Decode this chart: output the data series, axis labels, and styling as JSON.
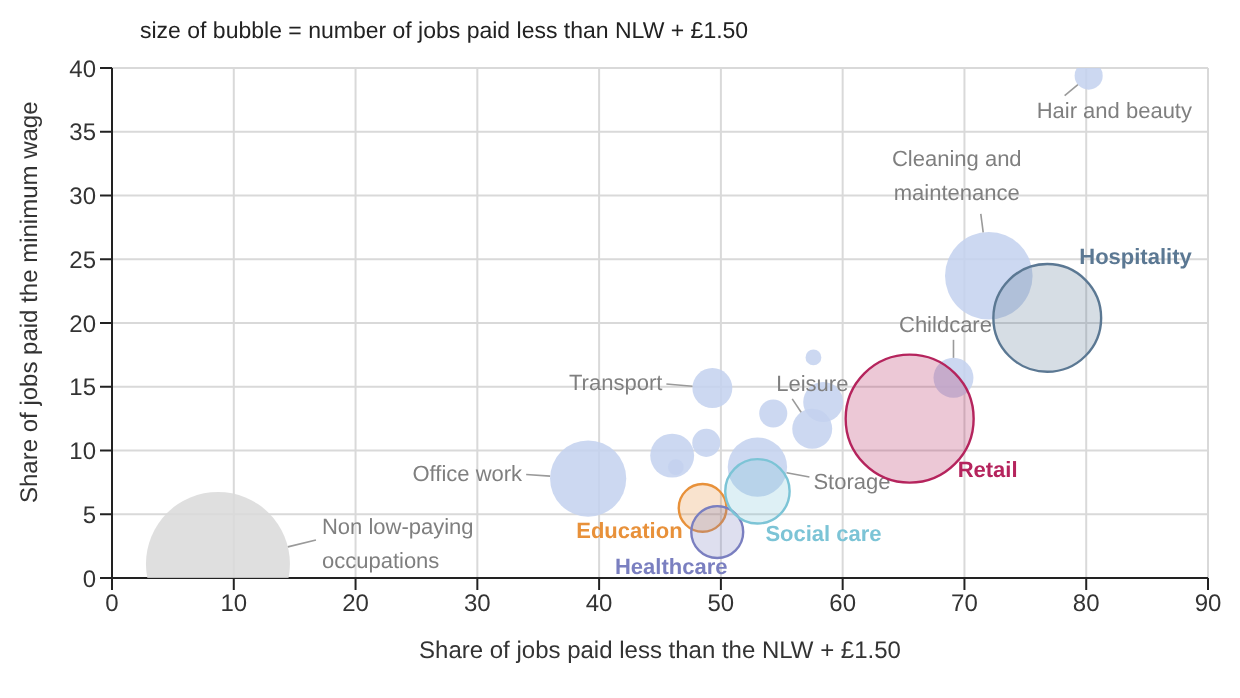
{
  "chart_data": {
    "type": "bubble",
    "title": "size of bubble = number of jobs paid less than NLW + £1.50",
    "xlabel": "Share of jobs paid less than the NLW + £1.50",
    "ylabel": "Share of jobs paid the minimum wage",
    "xlim": [
      0,
      90
    ],
    "xticks": [
      0,
      10,
      20,
      30,
      40,
      50,
      60,
      70,
      80,
      90
    ],
    "ylim": [
      0,
      40
    ],
    "yticks": [
      0,
      5,
      10,
      15,
      20,
      25,
      30,
      35,
      40
    ],
    "grid": true,
    "legend": false,
    "series": [
      {
        "name": "Non low-paying occupations",
        "color": "#d9d9d9",
        "x": [
          8.7
        ],
        "values": [
          1.1
        ],
        "sizes": [
          1
        ]
      },
      {
        "color": "#c3d1ee",
        "x": [
          46,
          48.8,
          46.3,
          54.3,
          58.4,
          57.6
        ],
        "values": [
          9.6,
          10.6,
          8.7,
          12.9,
          13.8,
          17.3
        ],
        "sizes": [
          0.093,
          0.038,
          0.012,
          0.038,
          0.077,
          0.012
        ]
      },
      {
        "name": "Office work",
        "color": "#c3d1ee",
        "x": [
          39.1
        ],
        "values": [
          7.8
        ],
        "sizes": [
          0.28
        ]
      },
      {
        "name": "Transport",
        "color": "#c3d1ee",
        "x": [
          49.3
        ],
        "values": [
          14.9
        ],
        "sizes": [
          0.077
        ]
      },
      {
        "name": "Leisure",
        "color": "#c3d1ee",
        "x": [
          57.5
        ],
        "values": [
          11.7
        ],
        "sizes": [
          0.077
        ]
      },
      {
        "name": "Storage",
        "color": "#c3d1ee",
        "x": [
          53
        ],
        "values": [
          8.7
        ],
        "sizes": [
          0.17
        ]
      },
      {
        "name": "Childcare",
        "color": "#c3d1ee",
        "x": [
          69.1
        ],
        "values": [
          15.7
        ],
        "sizes": [
          0.077
        ]
      },
      {
        "name": "Cleaning and maintenance",
        "color": "#c3d1ee",
        "x": [
          72
        ],
        "values": [
          23.7
        ],
        "sizes": [
          0.37
        ]
      },
      {
        "name": "Hair and beauty",
        "color": "#c3d1ee",
        "x": [
          80.2
        ],
        "values": [
          39.4
        ],
        "sizes": [
          0.038
        ]
      },
      {
        "name": "Hospitality",
        "color": "#5b7893",
        "x": [
          76.8
        ],
        "values": [
          20.4
        ],
        "sizes": [
          0.56
        ]
      },
      {
        "name": "Retail",
        "color": "#b5245d",
        "x": [
          65.5
        ],
        "values": [
          12.5
        ],
        "sizes": [
          0.79
        ]
      },
      {
        "name": "Education",
        "color": "#e8913a",
        "x": [
          48.5
        ],
        "values": [
          5.5
        ],
        "sizes": [
          0.11
        ]
      },
      {
        "name": "Healthcare",
        "color": "#7a7fc0",
        "x": [
          49.7
        ],
        "values": [
          3.6
        ],
        "sizes": [
          0.13
        ]
      },
      {
        "name": "Social care",
        "color": "#7cc4d6",
        "x": [
          53
        ],
        "values": [
          6.8
        ],
        "sizes": [
          0.2
        ]
      }
    ]
  }
}
